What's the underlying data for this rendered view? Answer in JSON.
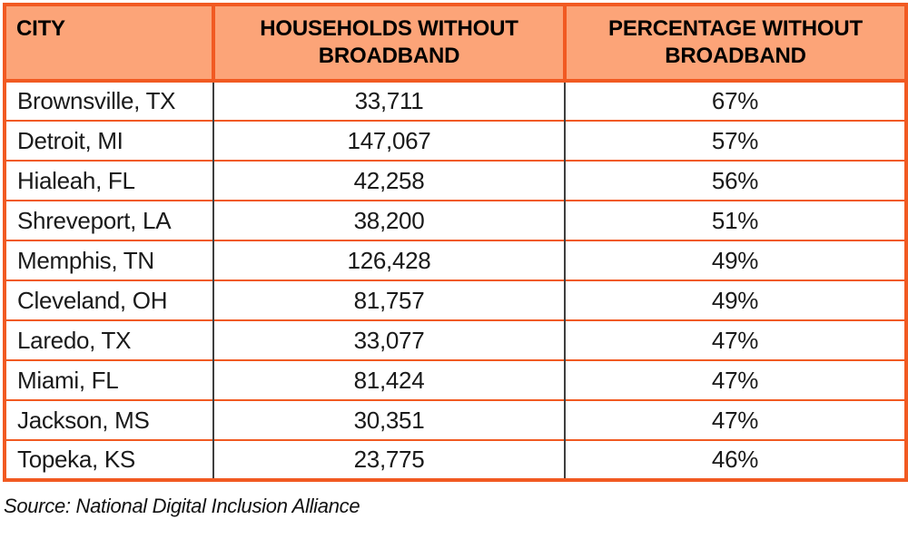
{
  "colors": {
    "border_orange": "#F15A22",
    "header_bg": "#FCA478",
    "divider_dark": "#3F3F3F",
    "text": "#1A1A1A"
  },
  "table": {
    "columns": [
      "CITY",
      "HOUSEHOLDS WITHOUT BROADBAND",
      "PERCENTAGE WITHOUT BROADBAND"
    ],
    "rows": [
      {
        "city": "Brownsville, TX",
        "households": "33,711",
        "percentage": "67%"
      },
      {
        "city": "Detroit, MI",
        "households": "147,067",
        "percentage": "57%"
      },
      {
        "city": "Hialeah, FL",
        "households": "42,258",
        "percentage": "56%"
      },
      {
        "city": "Shreveport, LA",
        "households": "38,200",
        "percentage": "51%"
      },
      {
        "city": "Memphis, TN",
        "households": "126,428",
        "percentage": "49%"
      },
      {
        "city": "Cleveland, OH",
        "households": "81,757",
        "percentage": "49%"
      },
      {
        "city": "Laredo, TX",
        "households": "33,077",
        "percentage": "47%"
      },
      {
        "city": "Miami, FL",
        "households": "81,424",
        "percentage": "47%"
      },
      {
        "city": "Jackson, MS",
        "households": "30,351",
        "percentage": "47%"
      },
      {
        "city": "Topeka, KS",
        "households": "23,775",
        "percentage": "46%"
      }
    ]
  },
  "source_note": "Source: National Digital Inclusion Alliance",
  "chart_data": {
    "type": "table",
    "columns": [
      "CITY",
      "HOUSEHOLDS WITHOUT BROADBAND",
      "PERCENTAGE WITHOUT BROADBAND"
    ],
    "rows": [
      [
        "Brownsville, TX",
        33711,
        67
      ],
      [
        "Detroit, MI",
        147067,
        57
      ],
      [
        "Hialeah, FL",
        42258,
        56
      ],
      [
        "Shreveport, LA",
        38200,
        51
      ],
      [
        "Memphis, TN",
        126428,
        49
      ],
      [
        "Cleveland, OH",
        81757,
        49
      ],
      [
        "Laredo, TX",
        33077,
        47
      ],
      [
        "Miami, FL",
        81424,
        47
      ],
      [
        "Jackson, MS",
        30351,
        47
      ],
      [
        "Topeka, KS",
        23775,
        46
      ]
    ],
    "percentage_unit": "%",
    "source": "Source: National Digital Inclusion Alliance"
  }
}
